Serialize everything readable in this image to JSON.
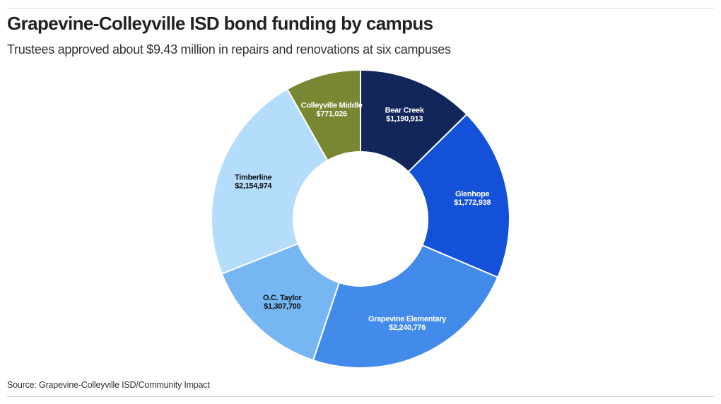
{
  "header": {
    "title": "Grapevine-Colleyville ISD bond funding by campus",
    "subtitle": "Trustees approved about $9.43 million in repairs and renovations at six campuses"
  },
  "footer": {
    "source": "Source: Grapevine-Colleyville ISD/Community Impact"
  },
  "chart_data": {
    "type": "pie",
    "donut": true,
    "title": "Grapevine-Colleyville ISD bond funding by campus",
    "subtitle": "Trustees approved about $9.43 million in repairs and renovations at six campuses",
    "slices": [
      {
        "label": "Bear Creek",
        "value": 1190913,
        "display": "$1,190,913",
        "color": "#13265a",
        "text_color": "#ffffff"
      },
      {
        "label": "Glenhope",
        "value": 1772938,
        "display": "$1,772,938",
        "color": "#1352d8",
        "text_color": "#ffffff"
      },
      {
        "label": "Grapevine Elementary",
        "value": 2240776,
        "display": "$2,240,776",
        "color": "#438bea",
        "text_color": "#ffffff"
      },
      {
        "label": "O.C. Taylor",
        "value": 1307700,
        "display": "$1,307,700",
        "color": "#76b6f3",
        "text_color": "#111111"
      },
      {
        "label": "Timberline",
        "value": 2154974,
        "display": "$2,154,974",
        "color": "#b4dcfb",
        "text_color": "#111111"
      },
      {
        "label": "Colleyville Middle",
        "value": 771026,
        "display": "$771,026",
        "color": "#788731",
        "text_color": "#ffffff"
      }
    ]
  }
}
